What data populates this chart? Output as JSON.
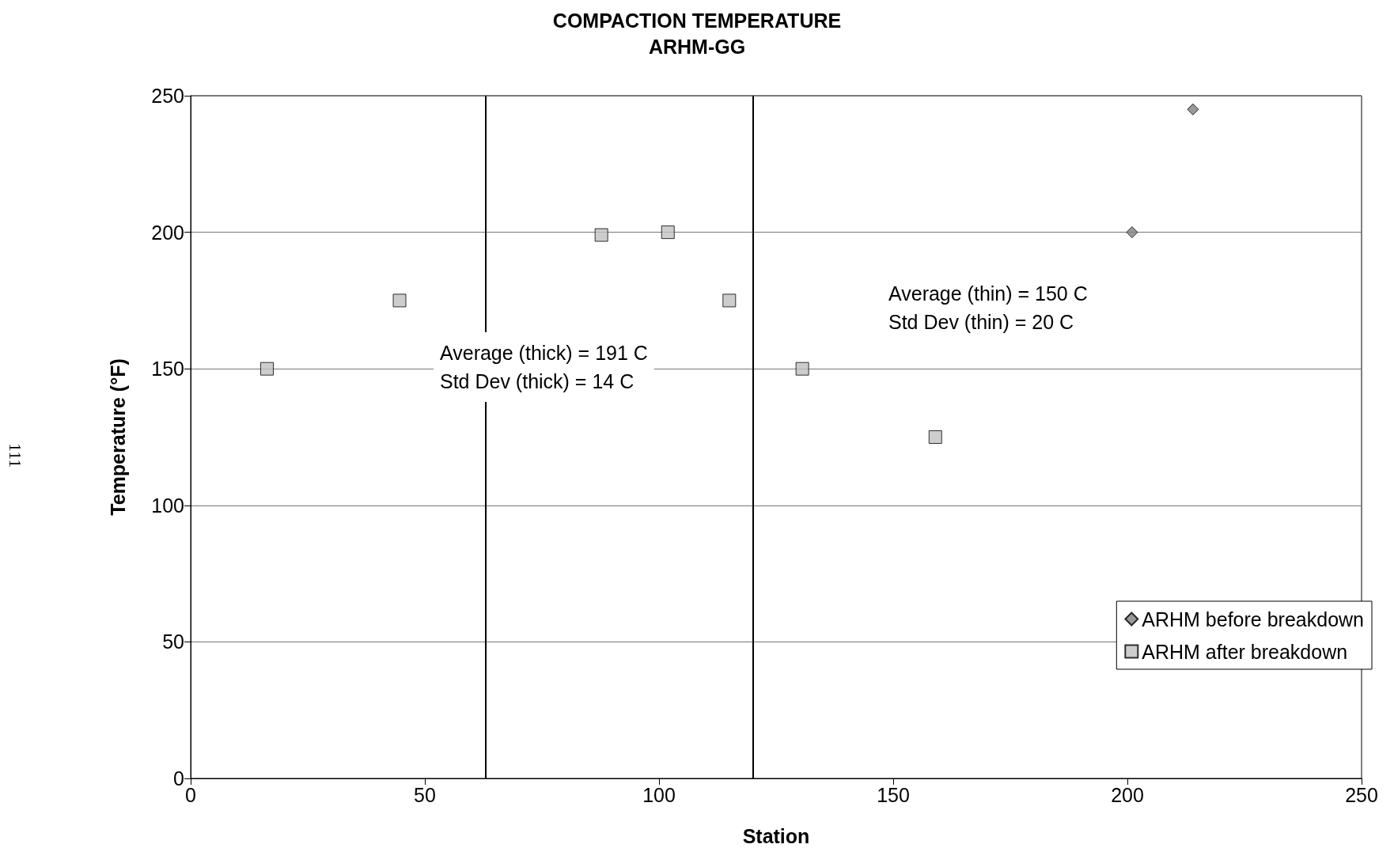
{
  "chart_data": {
    "type": "scatter",
    "title": "COMPACTION TEMPERATURE",
    "subtitle": "ARHM-GG",
    "xlabel": "Station",
    "ylabel": "Temperature (°F)",
    "series": [
      {
        "name": "ARHM before breakdown",
        "color": "#808080",
        "marker": "diamond",
        "x": [
          201,
          214
        ],
        "values": [
          200,
          245
        ]
      },
      {
        "name": "ARHM after breakdown",
        "color": "#c0c0c0",
        "marker": "square",
        "x": [
          16.3,
          44.6,
          87.7,
          101.9,
          115,
          130.6,
          159
        ],
        "values": [
          150,
          175,
          199,
          200,
          175,
          150,
          125
        ]
      }
    ],
    "xlim": [
      0,
      250
    ],
    "xticks": [
      0,
      50,
      100,
      150,
      200,
      250
    ],
    "ylim": [
      0,
      250
    ],
    "yticks": [
      0,
      50,
      100,
      150,
      200,
      250
    ],
    "grid": "y",
    "legend": "bottom right",
    "ref_lines": [
      {
        "axis": "x",
        "value": 63,
        "color": "#000000"
      },
      {
        "axis": "x",
        "value": 120,
        "color": "#000000"
      }
    ],
    "annotations": [
      "Average (thick) = 191 C\nStd Dev (thick) = 14 C",
      "Average (thin) = 150 C\nStd Dev (thin) = 20 C",
      "111"
    ]
  }
}
